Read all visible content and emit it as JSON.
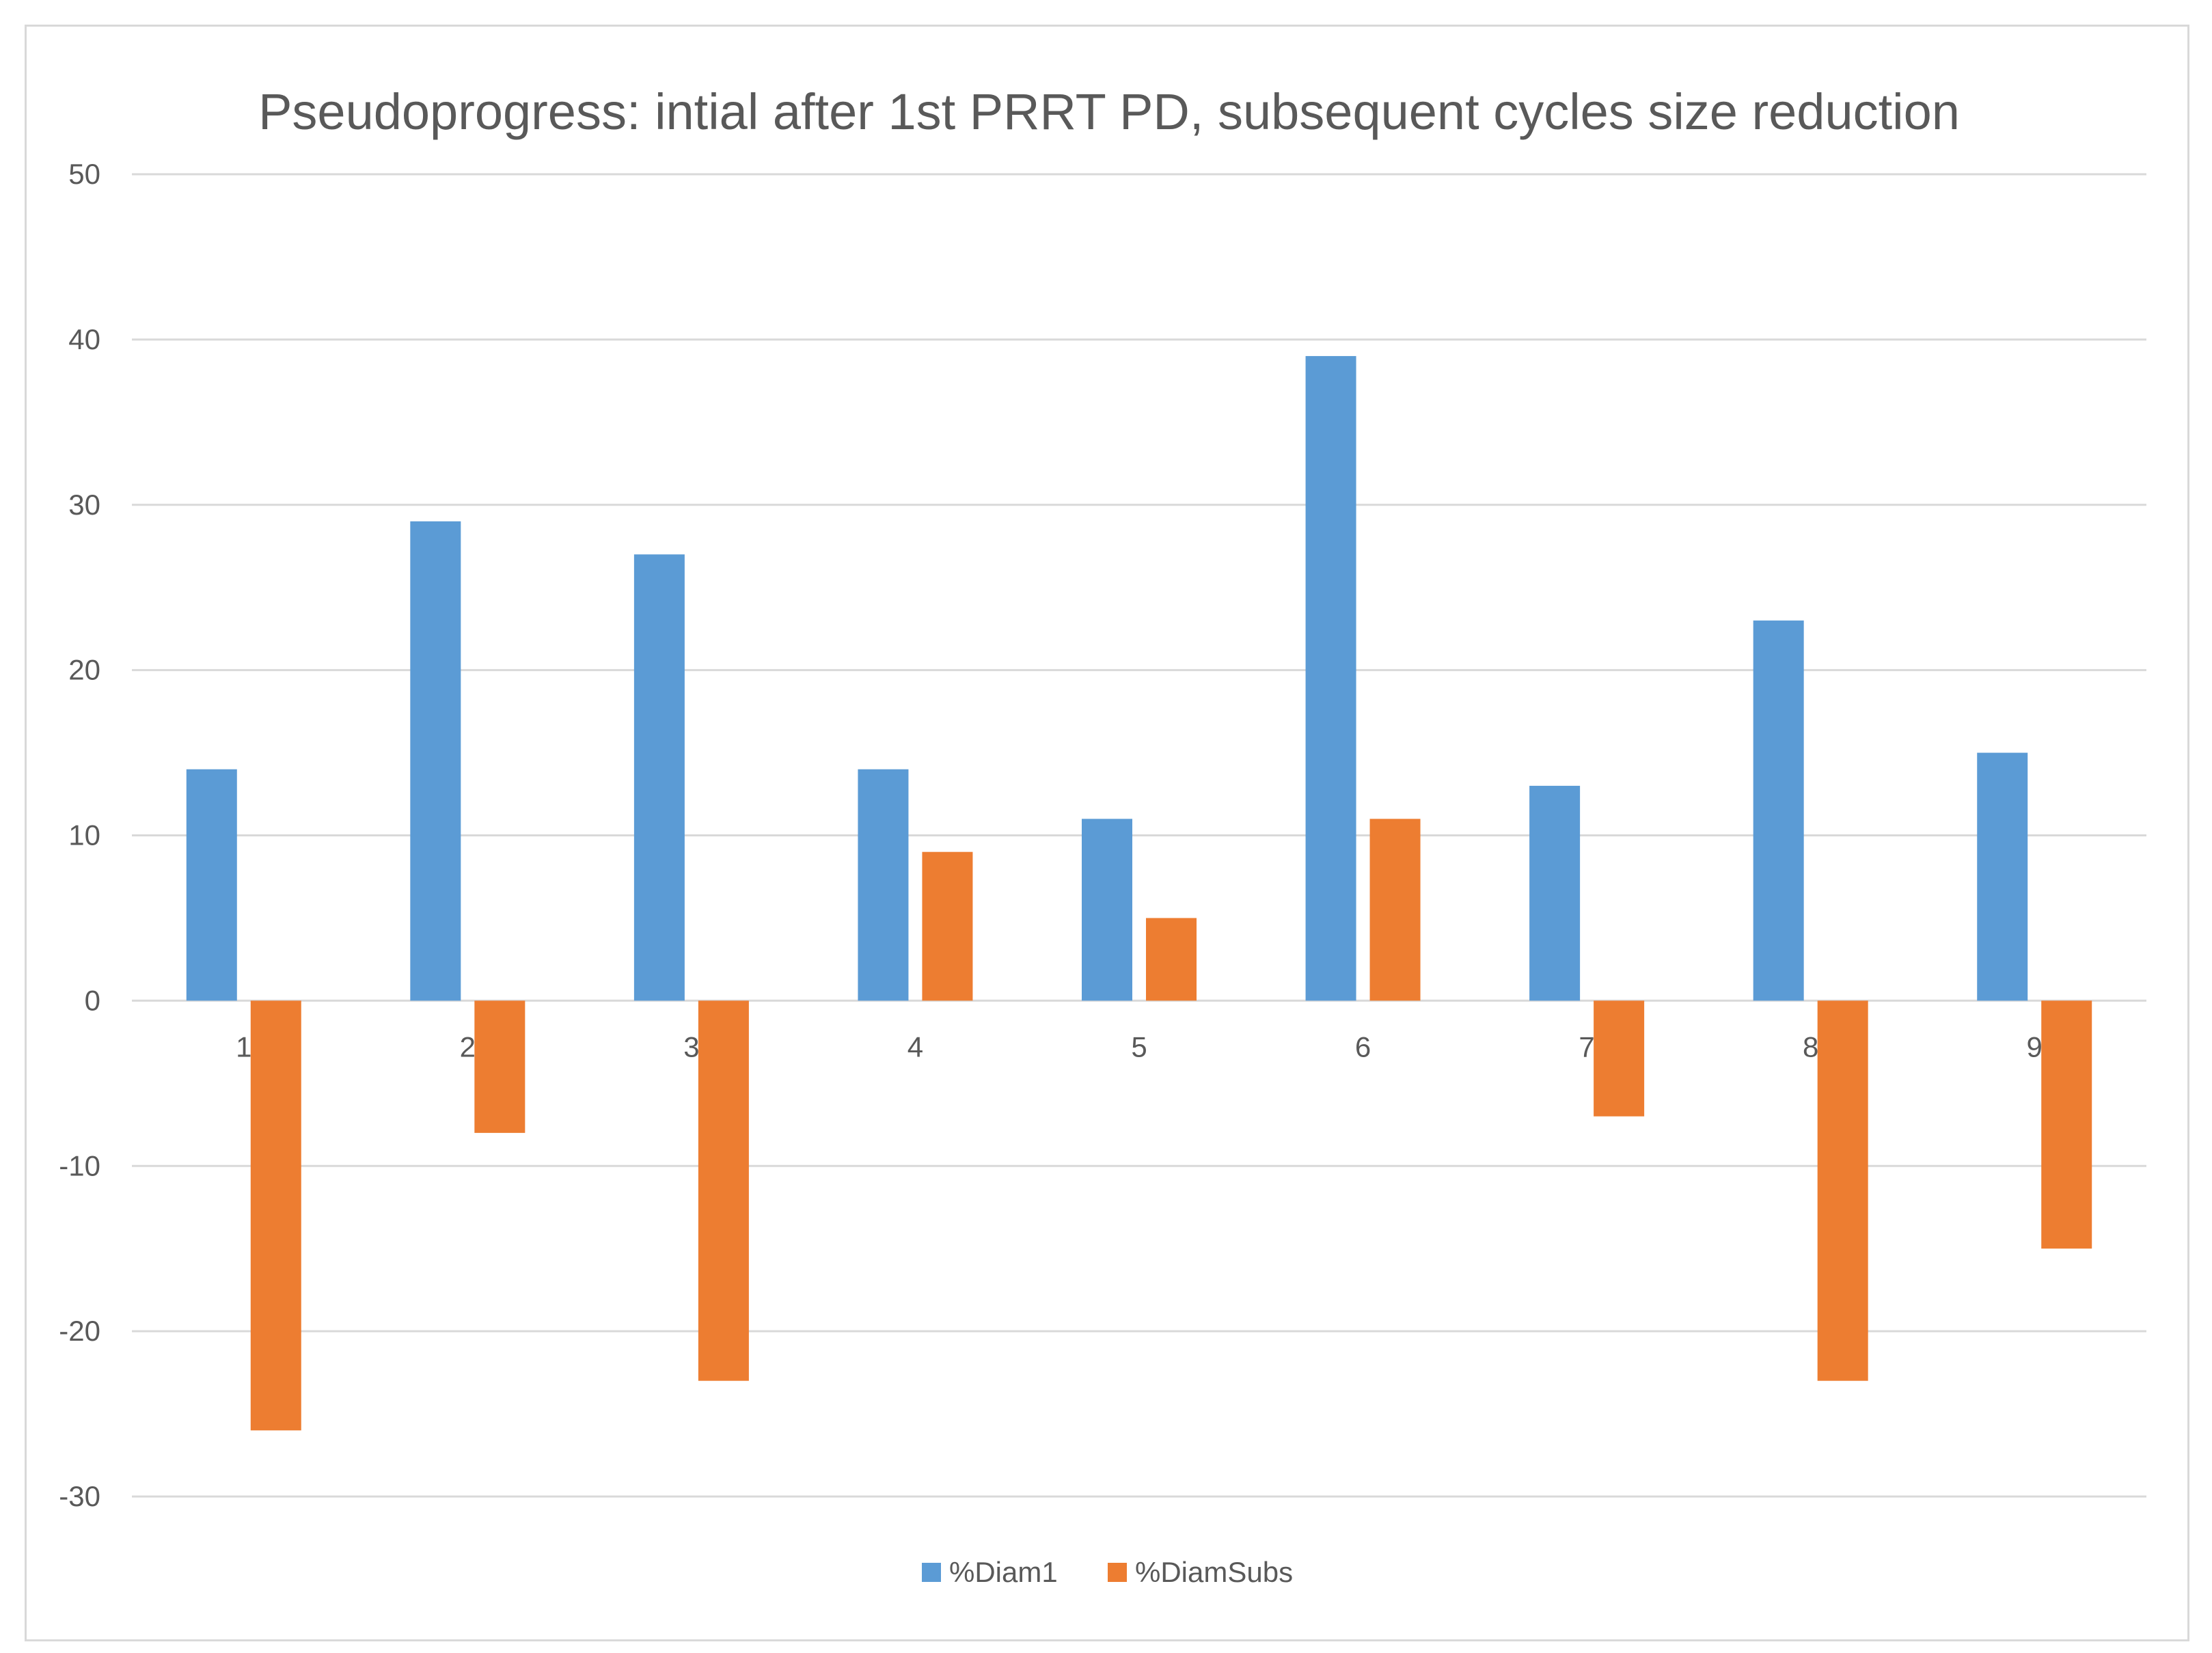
{
  "chart_data": {
    "type": "bar",
    "title": "Pseudoprogress: intial after 1st PRRT PD, subsequent cycles size reduction",
    "xlabel": "",
    "ylabel": "",
    "categories": [
      "1",
      "2",
      "3",
      "4",
      "5",
      "6",
      "7",
      "8",
      "9"
    ],
    "series": [
      {
        "name": "%Diam1",
        "color": "#5b9bd5",
        "values": [
          14,
          29,
          27,
          14,
          11,
          39,
          13,
          23,
          15
        ]
      },
      {
        "name": "%DiamSubs",
        "color": "#ed7d31",
        "values": [
          -26,
          -8,
          -23,
          9,
          5,
          11,
          -7,
          -23,
          -15
        ]
      }
    ],
    "ylim": [
      -30,
      50
    ],
    "yticks": [
      -30,
      -20,
      -10,
      0,
      10,
      20,
      30,
      40,
      50
    ],
    "grid": true,
    "legend": "bottom-center"
  }
}
